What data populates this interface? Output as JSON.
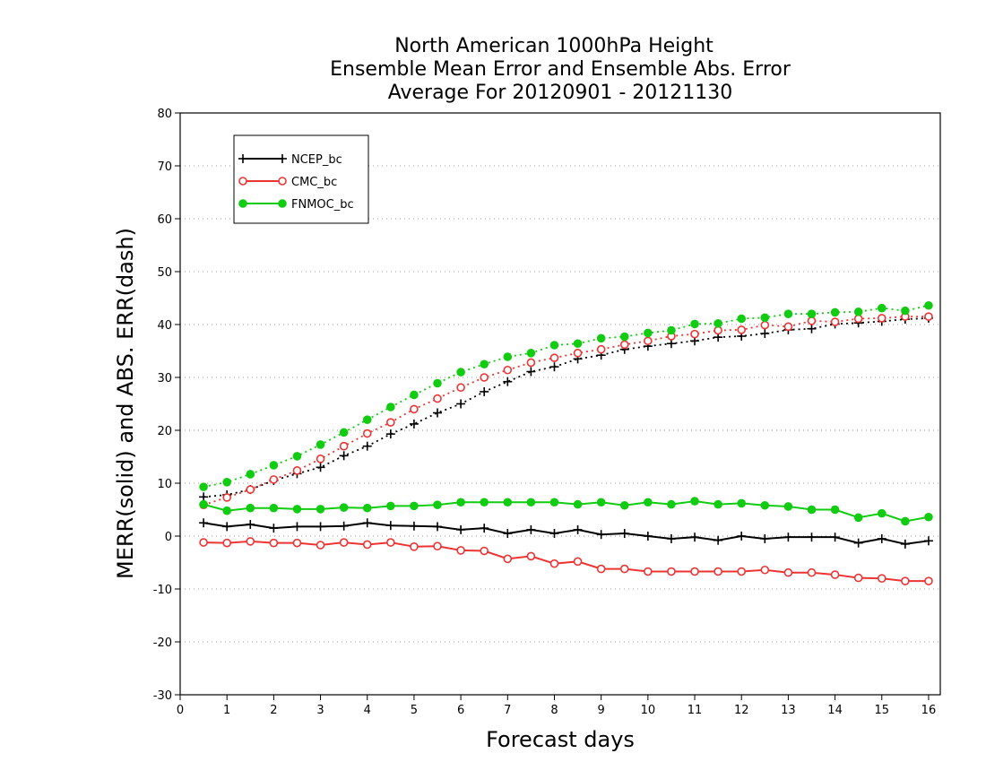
{
  "chart_data": {
    "type": "line",
    "title_lines": [
      "North American 1000hPa Height",
      "Ensemble Mean Error and Ensemble Abs. Error",
      "Average For 20120901 - 20121130"
    ],
    "xlabel": "Forecast days",
    "ylabel": "MERR(solid) and ABS. ERR(dash)",
    "xlim": [
      0,
      16.25
    ],
    "ylim": [
      -30,
      80
    ],
    "xticks": [
      0,
      1,
      2,
      3,
      4,
      5,
      6,
      7,
      8,
      9,
      10,
      11,
      12,
      13,
      14,
      15,
      16
    ],
    "yticks": [
      -30,
      -20,
      -10,
      0,
      10,
      20,
      30,
      40,
      50,
      60,
      70,
      80
    ],
    "grid": "dotted horizontal",
    "legend_position": "top-left",
    "x": [
      0.5,
      1,
      1.5,
      2,
      2.5,
      3,
      3.5,
      4,
      4.5,
      5,
      5.5,
      6,
      6.5,
      7,
      7.5,
      8,
      8.5,
      9,
      9.5,
      10,
      10.5,
      11,
      11.5,
      12,
      12.5,
      13,
      13.5,
      14,
      14.5,
      15,
      15.5,
      16
    ],
    "series": [
      {
        "name": "NCEP_bc",
        "color": "#000000",
        "marker": "plus",
        "mean_error": [
          2.5,
          1.8,
          2.2,
          1.5,
          1.8,
          1.8,
          1.9,
          2.5,
          2.0,
          1.9,
          1.8,
          1.2,
          1.5,
          0.5,
          1.2,
          0.5,
          1.2,
          0.3,
          0.5,
          0.0,
          -0.5,
          -0.2,
          -0.8,
          0.0,
          -0.5,
          -0.2,
          -0.2,
          -0.2,
          -1.3,
          -0.5,
          -1.5,
          -0.9
        ],
        "abs_error": [
          7.4,
          7.8,
          8.8,
          10.5,
          11.8,
          13.0,
          15.2,
          17.0,
          19.3,
          21.2,
          23.3,
          25.0,
          27.3,
          29.2,
          31.1,
          32.0,
          33.5,
          34.2,
          35.3,
          35.9,
          36.4,
          36.9,
          37.6,
          37.8,
          38.3,
          39.0,
          39.2,
          40.1,
          40.3,
          40.6,
          41.0,
          41.2
        ]
      },
      {
        "name": "CMC_bc",
        "color": "#ee3333",
        "marker": "open-circle",
        "mean_error": [
          -1.2,
          -1.3,
          -1.0,
          -1.3,
          -1.3,
          -1.7,
          -1.2,
          -1.6,
          -1.2,
          -2.0,
          -1.9,
          -2.7,
          -2.8,
          -4.3,
          -3.8,
          -5.2,
          -4.8,
          -6.2,
          -6.2,
          -6.7,
          -6.7,
          -6.7,
          -6.7,
          -6.7,
          -6.4,
          -6.9,
          -6.9,
          -7.3,
          -7.9,
          -8.0,
          -8.5,
          -8.5
        ],
        "abs_error": [
          5.9,
          7.3,
          8.8,
          10.7,
          12.4,
          14.6,
          17.0,
          19.4,
          21.5,
          24.0,
          26.0,
          28.1,
          30.0,
          31.4,
          32.8,
          33.7,
          34.6,
          35.3,
          36.2,
          36.9,
          37.8,
          38.2,
          38.9,
          39.0,
          39.9,
          39.6,
          40.7,
          40.5,
          41.1,
          41.2,
          41.5,
          41.5
        ]
      },
      {
        "name": "FNMOC_bc",
        "color": "#11cc11",
        "marker": "filled-circle",
        "mean_error": [
          6.0,
          4.8,
          5.3,
          5.3,
          5.1,
          5.1,
          5.4,
          5.3,
          5.7,
          5.7,
          5.9,
          6.4,
          6.4,
          6.4,
          6.4,
          6.4,
          6.0,
          6.4,
          5.8,
          6.4,
          6.0,
          6.6,
          6.0,
          6.2,
          5.8,
          5.6,
          5.0,
          5.0,
          3.5,
          4.3,
          2.8,
          3.6
        ],
        "abs_error": [
          9.3,
          10.2,
          11.7,
          13.4,
          15.1,
          17.3,
          19.6,
          22.0,
          24.4,
          26.7,
          28.9,
          31.0,
          32.5,
          33.9,
          34.6,
          36.1,
          36.4,
          37.4,
          37.7,
          38.4,
          38.9,
          40.1,
          40.2,
          41.1,
          41.3,
          42.0,
          42.0,
          42.3,
          42.4,
          43.1,
          42.6,
          43.6
        ]
      }
    ]
  }
}
